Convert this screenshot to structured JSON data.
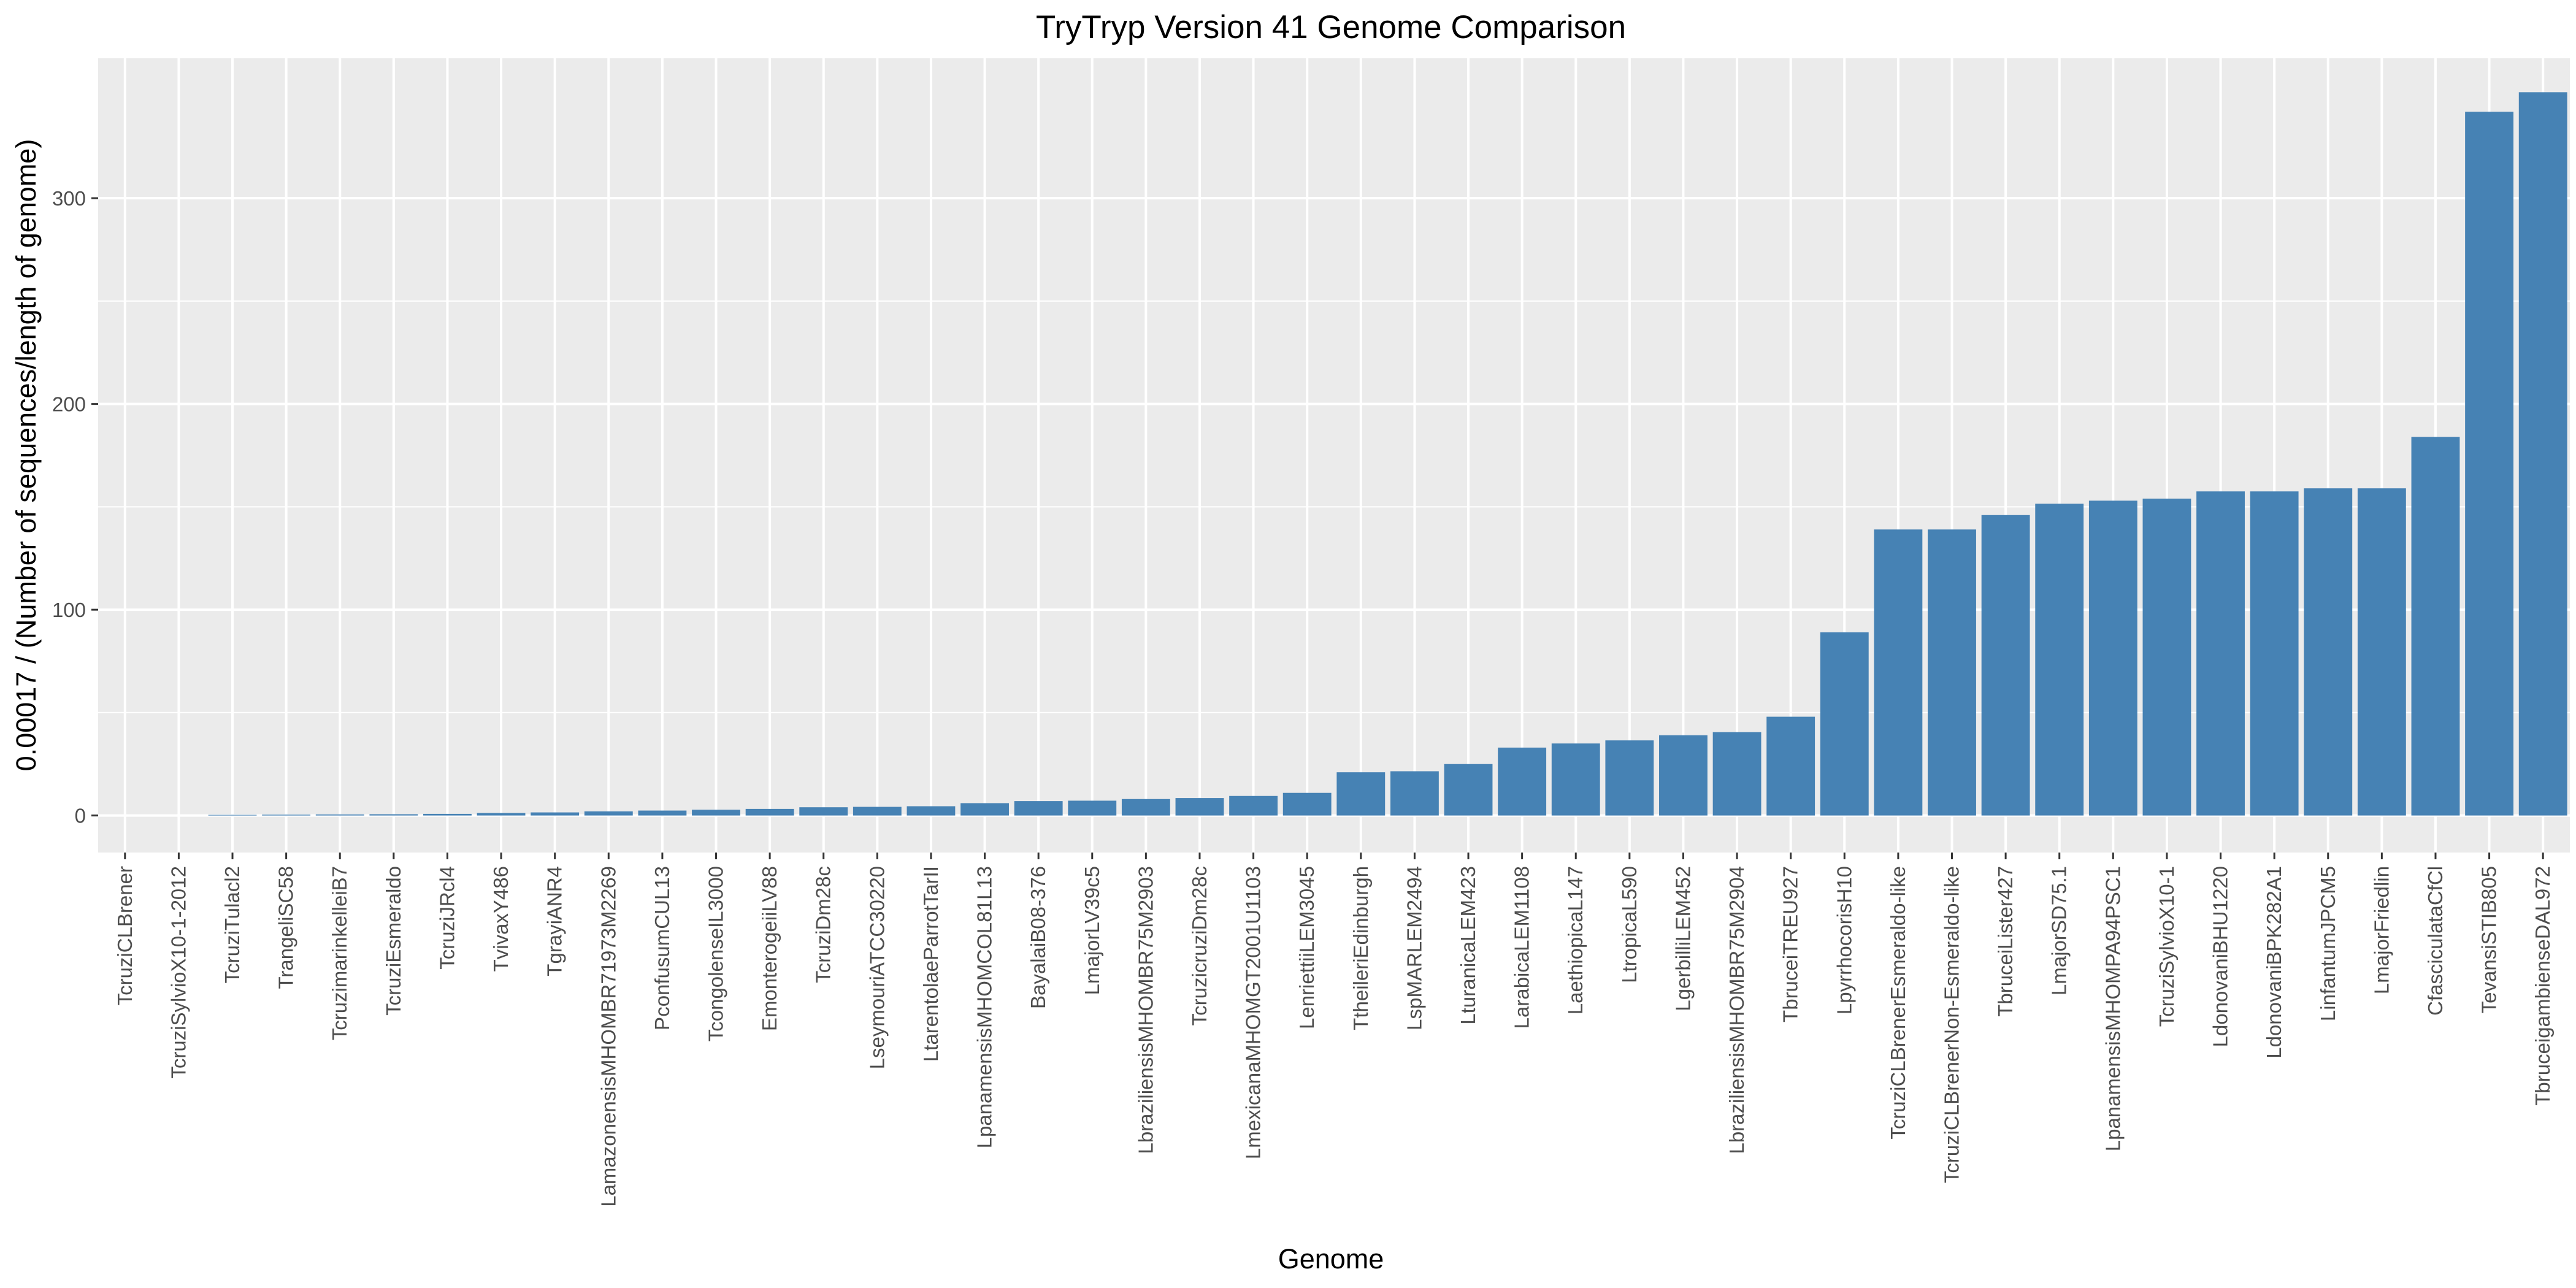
{
  "chart_data": {
    "type": "bar",
    "title": "TryTryp Version 41 Genome Comparison",
    "xlabel": "Genome",
    "ylabel": "0.00017 / (Number of sequences/length of genome)",
    "ylim": [
      -18,
      368
    ],
    "yticks": [
      0,
      100,
      200,
      300
    ],
    "grid": true,
    "bar_color": "#4682B4",
    "panel_color": "#EBEBEB",
    "grid_color": "#FFFFFF",
    "categories": [
      "TcruziCLBrener",
      "TcruziSylvioX10-1-2012",
      "TcruziTulacl2",
      "TrangeliSC58",
      "TcruzimarinkelleiB7",
      "TcruziEsmeraldo",
      "TcruziJRcl4",
      "TvivaxY486",
      "TgrayiANR4",
      "LamazonensisMHOMBR71973M2269",
      "PconfusumCUL13",
      "TcongolenseIL3000",
      "EmonterogeiiLV88",
      "TcruziDm28c",
      "LseymouriATCC30220",
      "LtarentolaeParrotTarII",
      "LpanamensisMHOMCOL81L13",
      "BayalaiB08-376",
      "LmajorLV39c5",
      "LbraziliensisMHOMBR75M2903",
      "TcruzicruziDm28c",
      "LmexicanaMHOMGT2001U1103",
      "LenriettiiLEM3045",
      "TtheileriEdinburgh",
      "LspMARLEM2494",
      "LturanicaLEM423",
      "LarabicaLEM1108",
      "LaethiopicaL147",
      "LtropicaL590",
      "LgerbilliLEM452",
      "LbraziliensisMHOMBR75M2904",
      "TbruceiTREU927",
      "LpyrrhocorisH10",
      "TcruziCLBrenerEsmeraldo-like",
      "TcruziCLBrenerNon-Esmeraldo-like",
      "TbruceiLister427",
      "LmajorSD75.1",
      "LpanamensisMHOMPA94PSC1",
      "TcruziSylvioX10-1",
      "LdonovaniBHU1220",
      "LdonovaniBPK282A1",
      "LinfantumJPCM5",
      "LmajorFriedlin",
      "CfasciculataCfCl",
      "TevansiSTIB805",
      "TbruceigambienseDAL972"
    ],
    "values": [
      0,
      0,
      0.3,
      0.4,
      0.5,
      0.6,
      0.8,
      1.2,
      1.5,
      2.0,
      2.4,
      2.8,
      3.2,
      4.0,
      4.2,
      4.5,
      6.0,
      7.0,
      7.2,
      8.0,
      8.5,
      9.5,
      11.0,
      21.0,
      21.5,
      25.0,
      33.0,
      35.0,
      36.5,
      39.0,
      40.5,
      48.0,
      89.0,
      139.0,
      139.0,
      146.0,
      151.5,
      153.0,
      154.0,
      157.5,
      157.5,
      159.0,
      159.0,
      184.0,
      342.0,
      351.5
    ]
  }
}
